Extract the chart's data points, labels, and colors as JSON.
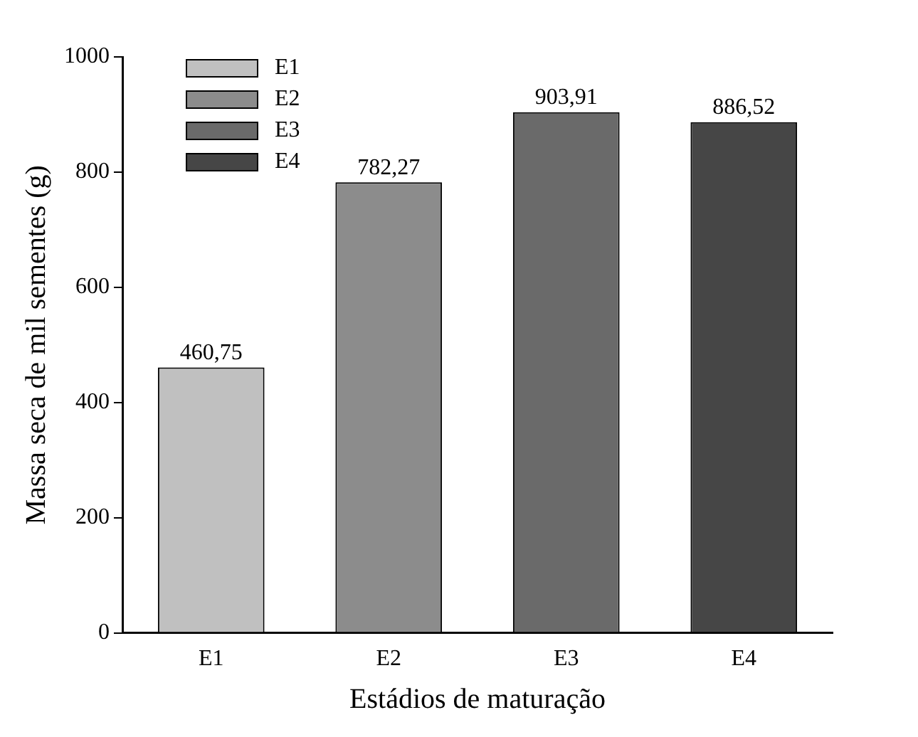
{
  "chart_data": {
    "type": "bar",
    "xlabel": "Estádios de maturação",
    "ylabel": "Massa seca de mil sementes (g)",
    "categories": [
      "E1",
      "E2",
      "E3",
      "E4"
    ],
    "series": [
      {
        "name": "E1",
        "color": "#c0c0c0",
        "values": [
          460.75,
          null,
          null,
          null
        ],
        "value_labels": [
          "460,75",
          null,
          null,
          null
        ]
      },
      {
        "name": "E2",
        "color": "#8c8c8c",
        "values": [
          null,
          782.27,
          null,
          null
        ],
        "value_labels": [
          null,
          "782,27",
          null,
          null
        ]
      },
      {
        "name": "E3",
        "color": "#6a6a6a",
        "values": [
          null,
          null,
          903.91,
          null
        ],
        "value_labels": [
          null,
          null,
          "903,91",
          null
        ]
      },
      {
        "name": "E4",
        "color": "#464646",
        "values": [
          null,
          null,
          null,
          886.52
        ],
        "value_labels": [
          null,
          null,
          null,
          "886,52"
        ]
      }
    ],
    "ylim": [
      0,
      1000
    ],
    "yticks": [
      0,
      200,
      400,
      600,
      800,
      1000
    ],
    "grid": false,
    "legend": "top left"
  }
}
